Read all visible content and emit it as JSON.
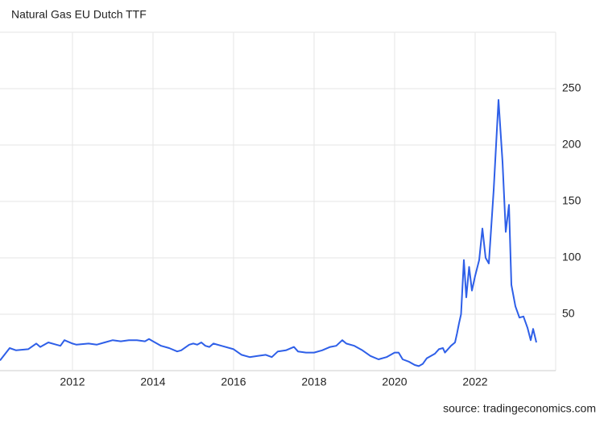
{
  "chart_data": {
    "type": "line",
    "title": "Natural Gas EU Dutch TTF",
    "source": "source: tradingeconomics.com",
    "x": [
      2010.2,
      2010.44,
      2010.6,
      2010.9,
      2011.1,
      2011.2,
      2011.4,
      2011.6,
      2011.7,
      2011.8,
      2012.0,
      2012.1,
      2012.4,
      2012.6,
      2012.8,
      2013.0,
      2013.2,
      2013.4,
      2013.6,
      2013.8,
      2013.9,
      2014.0,
      2014.2,
      2014.4,
      2014.6,
      2014.7,
      2014.9,
      2015.0,
      2015.1,
      2015.2,
      2015.3,
      2015.4,
      2015.5,
      2015.7,
      2016.0,
      2016.2,
      2016.4,
      2016.6,
      2016.8,
      2016.95,
      2017.1,
      2017.3,
      2017.5,
      2017.6,
      2017.8,
      2018.0,
      2018.2,
      2018.4,
      2018.55,
      2018.7,
      2018.8,
      2019.0,
      2019.2,
      2019.4,
      2019.6,
      2019.8,
      2020.0,
      2020.1,
      2020.2,
      2020.35,
      2020.5,
      2020.6,
      2020.7,
      2020.8,
      2021.0,
      2021.1,
      2021.2,
      2021.25,
      2021.4,
      2021.5,
      2021.55,
      2021.6,
      2021.65,
      2021.72,
      2021.78,
      2021.85,
      2021.92,
      2022.0,
      2022.1,
      2022.18,
      2022.26,
      2022.34,
      2022.46,
      2022.58,
      2022.68,
      2022.76,
      2022.84,
      2022.9,
      2023.0,
      2023.1,
      2023.2,
      2023.3,
      2023.38,
      2023.44,
      2023.52
    ],
    "series": [
      {
        "name": "TTF",
        "color": "#2e5fe8",
        "values": [
          9,
          20,
          18,
          19,
          24,
          21,
          25,
          23,
          22,
          27,
          24,
          23,
          24,
          23,
          25,
          27,
          26,
          27,
          27,
          26,
          28,
          26,
          22,
          20,
          17,
          18,
          23,
          24,
          23,
          25,
          22,
          21,
          24,
          22,
          19,
          14,
          12,
          13,
          14,
          12,
          17,
          18,
          21,
          17,
          16,
          16,
          18,
          21,
          22,
          27,
          24,
          22,
          18,
          13,
          10,
          12,
          16,
          16,
          10,
          8,
          5,
          4,
          6,
          11,
          15,
          19,
          20,
          16,
          22,
          25,
          33,
          42,
          50,
          98,
          65,
          92,
          71,
          84,
          98,
          126,
          100,
          95,
          160,
          240,
          185,
          123,
          147,
          76,
          57,
          47,
          48,
          38,
          27,
          37,
          25
        ]
      }
    ],
    "xlim": [
      2010.2,
      2024
    ],
    "xticks": [
      2012,
      2014,
      2016,
      2018,
      2020,
      2022
    ],
    "ylim": [
      0,
      300
    ],
    "yticks": [
      50,
      100,
      150,
      200,
      250
    ],
    "grid": true
  }
}
